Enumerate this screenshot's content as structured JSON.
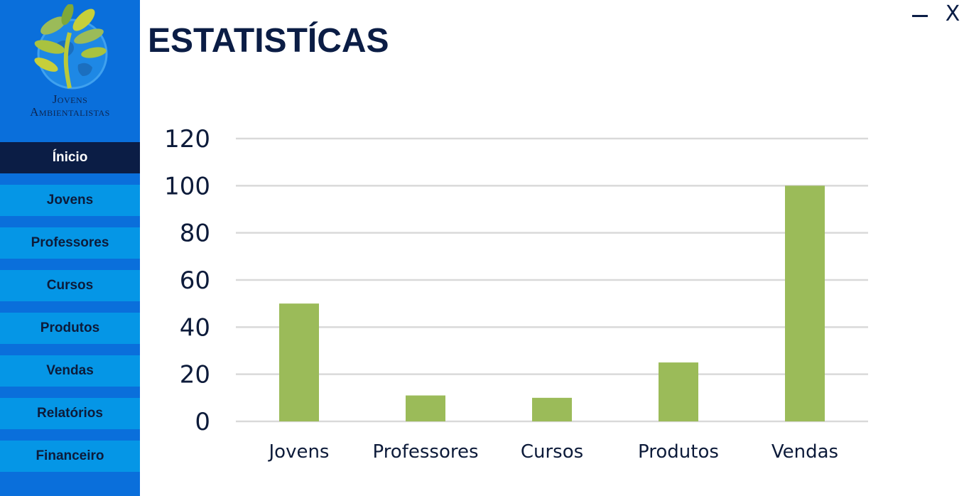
{
  "app": {
    "logo_line1": "Jovens",
    "logo_line2": "Ambientalistas",
    "page_title": "ESTATISTÍCAS",
    "minimize_symbol": "—",
    "close_symbol": "X"
  },
  "sidebar": {
    "items": [
      {
        "label": "Ínicio",
        "active": true
      },
      {
        "label": "Jovens"
      },
      {
        "label": "Professores"
      },
      {
        "label": "Cursos"
      },
      {
        "label": "Produtos"
      },
      {
        "label": "Vendas"
      },
      {
        "label": "Relatórios"
      },
      {
        "label": "Financeiro"
      }
    ]
  },
  "colors": {
    "sidebar_bg": "#0a6fdb",
    "nav_item_bg": "#0596e6",
    "nav_active_bg": "#0b1d45",
    "title_color": "#0b1d45",
    "bar_color": "#9bbb59",
    "grid_color": "#d9d9d9"
  },
  "chart_data": {
    "type": "bar",
    "categories": [
      "Jovens",
      "Professores",
      "Cursos",
      "Produtos",
      "Vendas"
    ],
    "values": [
      50,
      11,
      10,
      25,
      100
    ],
    "title": "",
    "xlabel": "",
    "ylabel": "",
    "ylim": [
      0,
      120
    ],
    "yticks": [
      0,
      20,
      40,
      60,
      80,
      100,
      120
    ],
    "grid": true,
    "legend": "none"
  }
}
